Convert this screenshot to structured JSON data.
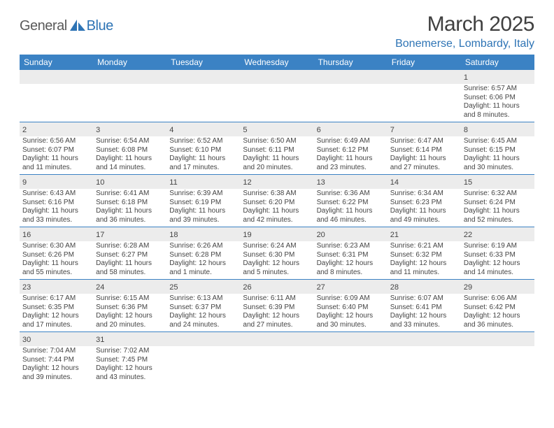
{
  "brand": {
    "part1": "General",
    "part2": "Blue"
  },
  "title": "March 2025",
  "location": "Bonemerse, Lombardy, Italy",
  "colors": {
    "header_bar": "#3b82c4",
    "accent": "#2e74b5",
    "daynum_bg": "#ececec",
    "text": "#444444"
  },
  "days_of_week": [
    "Sunday",
    "Monday",
    "Tuesday",
    "Wednesday",
    "Thursday",
    "Friday",
    "Saturday"
  ],
  "weeks": [
    [
      {
        "n": "",
        "sunrise": "",
        "sunset": "",
        "daylight": ""
      },
      {
        "n": "",
        "sunrise": "",
        "sunset": "",
        "daylight": ""
      },
      {
        "n": "",
        "sunrise": "",
        "sunset": "",
        "daylight": ""
      },
      {
        "n": "",
        "sunrise": "",
        "sunset": "",
        "daylight": ""
      },
      {
        "n": "",
        "sunrise": "",
        "sunset": "",
        "daylight": ""
      },
      {
        "n": "",
        "sunrise": "",
        "sunset": "",
        "daylight": ""
      },
      {
        "n": "1",
        "sunrise": "Sunrise: 6:57 AM",
        "sunset": "Sunset: 6:06 PM",
        "daylight": "Daylight: 11 hours and 8 minutes."
      }
    ],
    [
      {
        "n": "2",
        "sunrise": "Sunrise: 6:56 AM",
        "sunset": "Sunset: 6:07 PM",
        "daylight": "Daylight: 11 hours and 11 minutes."
      },
      {
        "n": "3",
        "sunrise": "Sunrise: 6:54 AM",
        "sunset": "Sunset: 6:08 PM",
        "daylight": "Daylight: 11 hours and 14 minutes."
      },
      {
        "n": "4",
        "sunrise": "Sunrise: 6:52 AM",
        "sunset": "Sunset: 6:10 PM",
        "daylight": "Daylight: 11 hours and 17 minutes."
      },
      {
        "n": "5",
        "sunrise": "Sunrise: 6:50 AM",
        "sunset": "Sunset: 6:11 PM",
        "daylight": "Daylight: 11 hours and 20 minutes."
      },
      {
        "n": "6",
        "sunrise": "Sunrise: 6:49 AM",
        "sunset": "Sunset: 6:12 PM",
        "daylight": "Daylight: 11 hours and 23 minutes."
      },
      {
        "n": "7",
        "sunrise": "Sunrise: 6:47 AM",
        "sunset": "Sunset: 6:14 PM",
        "daylight": "Daylight: 11 hours and 27 minutes."
      },
      {
        "n": "8",
        "sunrise": "Sunrise: 6:45 AM",
        "sunset": "Sunset: 6:15 PM",
        "daylight": "Daylight: 11 hours and 30 minutes."
      }
    ],
    [
      {
        "n": "9",
        "sunrise": "Sunrise: 6:43 AM",
        "sunset": "Sunset: 6:16 PM",
        "daylight": "Daylight: 11 hours and 33 minutes."
      },
      {
        "n": "10",
        "sunrise": "Sunrise: 6:41 AM",
        "sunset": "Sunset: 6:18 PM",
        "daylight": "Daylight: 11 hours and 36 minutes."
      },
      {
        "n": "11",
        "sunrise": "Sunrise: 6:39 AM",
        "sunset": "Sunset: 6:19 PM",
        "daylight": "Daylight: 11 hours and 39 minutes."
      },
      {
        "n": "12",
        "sunrise": "Sunrise: 6:38 AM",
        "sunset": "Sunset: 6:20 PM",
        "daylight": "Daylight: 11 hours and 42 minutes."
      },
      {
        "n": "13",
        "sunrise": "Sunrise: 6:36 AM",
        "sunset": "Sunset: 6:22 PM",
        "daylight": "Daylight: 11 hours and 46 minutes."
      },
      {
        "n": "14",
        "sunrise": "Sunrise: 6:34 AM",
        "sunset": "Sunset: 6:23 PM",
        "daylight": "Daylight: 11 hours and 49 minutes."
      },
      {
        "n": "15",
        "sunrise": "Sunrise: 6:32 AM",
        "sunset": "Sunset: 6:24 PM",
        "daylight": "Daylight: 11 hours and 52 minutes."
      }
    ],
    [
      {
        "n": "16",
        "sunrise": "Sunrise: 6:30 AM",
        "sunset": "Sunset: 6:26 PM",
        "daylight": "Daylight: 11 hours and 55 minutes."
      },
      {
        "n": "17",
        "sunrise": "Sunrise: 6:28 AM",
        "sunset": "Sunset: 6:27 PM",
        "daylight": "Daylight: 11 hours and 58 minutes."
      },
      {
        "n": "18",
        "sunrise": "Sunrise: 6:26 AM",
        "sunset": "Sunset: 6:28 PM",
        "daylight": "Daylight: 12 hours and 1 minute."
      },
      {
        "n": "19",
        "sunrise": "Sunrise: 6:24 AM",
        "sunset": "Sunset: 6:30 PM",
        "daylight": "Daylight: 12 hours and 5 minutes."
      },
      {
        "n": "20",
        "sunrise": "Sunrise: 6:23 AM",
        "sunset": "Sunset: 6:31 PM",
        "daylight": "Daylight: 12 hours and 8 minutes."
      },
      {
        "n": "21",
        "sunrise": "Sunrise: 6:21 AM",
        "sunset": "Sunset: 6:32 PM",
        "daylight": "Daylight: 12 hours and 11 minutes."
      },
      {
        "n": "22",
        "sunrise": "Sunrise: 6:19 AM",
        "sunset": "Sunset: 6:33 PM",
        "daylight": "Daylight: 12 hours and 14 minutes."
      }
    ],
    [
      {
        "n": "23",
        "sunrise": "Sunrise: 6:17 AM",
        "sunset": "Sunset: 6:35 PM",
        "daylight": "Daylight: 12 hours and 17 minutes."
      },
      {
        "n": "24",
        "sunrise": "Sunrise: 6:15 AM",
        "sunset": "Sunset: 6:36 PM",
        "daylight": "Daylight: 12 hours and 20 minutes."
      },
      {
        "n": "25",
        "sunrise": "Sunrise: 6:13 AM",
        "sunset": "Sunset: 6:37 PM",
        "daylight": "Daylight: 12 hours and 24 minutes."
      },
      {
        "n": "26",
        "sunrise": "Sunrise: 6:11 AM",
        "sunset": "Sunset: 6:39 PM",
        "daylight": "Daylight: 12 hours and 27 minutes."
      },
      {
        "n": "27",
        "sunrise": "Sunrise: 6:09 AM",
        "sunset": "Sunset: 6:40 PM",
        "daylight": "Daylight: 12 hours and 30 minutes."
      },
      {
        "n": "28",
        "sunrise": "Sunrise: 6:07 AM",
        "sunset": "Sunset: 6:41 PM",
        "daylight": "Daylight: 12 hours and 33 minutes."
      },
      {
        "n": "29",
        "sunrise": "Sunrise: 6:06 AM",
        "sunset": "Sunset: 6:42 PM",
        "daylight": "Daylight: 12 hours and 36 minutes."
      }
    ],
    [
      {
        "n": "30",
        "sunrise": "Sunrise: 7:04 AM",
        "sunset": "Sunset: 7:44 PM",
        "daylight": "Daylight: 12 hours and 39 minutes."
      },
      {
        "n": "31",
        "sunrise": "Sunrise: 7:02 AM",
        "sunset": "Sunset: 7:45 PM",
        "daylight": "Daylight: 12 hours and 43 minutes."
      },
      {
        "n": "",
        "sunrise": "",
        "sunset": "",
        "daylight": ""
      },
      {
        "n": "",
        "sunrise": "",
        "sunset": "",
        "daylight": ""
      },
      {
        "n": "",
        "sunrise": "",
        "sunset": "",
        "daylight": ""
      },
      {
        "n": "",
        "sunrise": "",
        "sunset": "",
        "daylight": ""
      },
      {
        "n": "",
        "sunrise": "",
        "sunset": "",
        "daylight": ""
      }
    ]
  ]
}
